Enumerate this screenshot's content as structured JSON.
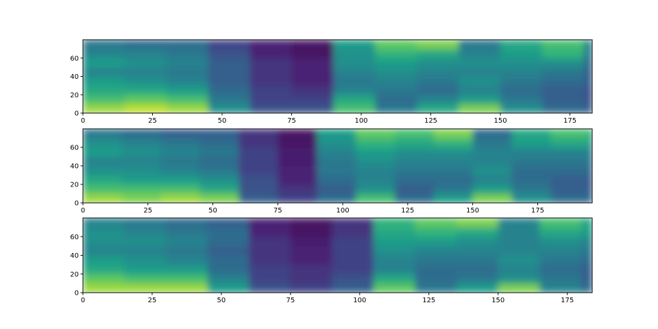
{
  "chart_data": [
    {
      "type": "heatmap",
      "colormap": "viridis",
      "xlim": [
        0,
        183
      ],
      "ylim": [
        0,
        80
      ],
      "xticks": [
        0,
        25,
        50,
        75,
        100,
        125,
        150,
        175
      ],
      "yticks": [
        0,
        20,
        40,
        60
      ],
      "xbins": [
        0,
        15,
        30,
        45,
        60,
        75,
        90,
        105,
        120,
        135,
        150,
        165,
        180,
        183
      ],
      "ybins": [
        0,
        10,
        20,
        30,
        40,
        50,
        60,
        70,
        80
      ],
      "z": [
        [
          0.85,
          0.7,
          0.6,
          0.55,
          0.45,
          0.55,
          0.45,
          0.4
        ],
        [
          0.9,
          0.75,
          0.6,
          0.5,
          0.45,
          0.5,
          0.45,
          0.35
        ],
        [
          0.85,
          0.7,
          0.55,
          0.45,
          0.4,
          0.45,
          0.4,
          0.35
        ],
        [
          0.5,
          0.4,
          0.35,
          0.3,
          0.3,
          0.3,
          0.25,
          0.2
        ],
        [
          0.25,
          0.2,
          0.2,
          0.15,
          0.15,
          0.15,
          0.1,
          0.1
        ],
        [
          0.25,
          0.2,
          0.15,
          0.1,
          0.1,
          0.1,
          0.05,
          0.05
        ],
        [
          0.7,
          0.6,
          0.45,
          0.4,
          0.45,
          0.5,
          0.5,
          0.55
        ],
        [
          0.4,
          0.35,
          0.4,
          0.45,
          0.5,
          0.55,
          0.65,
          0.75
        ],
        [
          0.6,
          0.45,
          0.35,
          0.4,
          0.45,
          0.5,
          0.6,
          0.8
        ],
        [
          0.8,
          0.55,
          0.45,
          0.5,
          0.45,
          0.5,
          0.45,
          0.4
        ],
        [
          0.5,
          0.4,
          0.35,
          0.4,
          0.45,
          0.5,
          0.55,
          0.6
        ],
        [
          0.35,
          0.3,
          0.3,
          0.35,
          0.4,
          0.5,
          0.65,
          0.7
        ],
        [
          0.3,
          0.25,
          0.25,
          0.3,
          0.3,
          0.35,
          0.4,
          0.45
        ]
      ]
    },
    {
      "type": "heatmap",
      "colormap": "viridis",
      "xlim": [
        0,
        196
      ],
      "ylim": [
        0,
        80
      ],
      "xticks": [
        0,
        25,
        50,
        75,
        100,
        125,
        150,
        175
      ],
      "yticks": [
        0,
        20,
        40,
        60
      ],
      "xbins": [
        0,
        15,
        30,
        45,
        60,
        75,
        90,
        105,
        120,
        135,
        150,
        165,
        180,
        195,
        196
      ],
      "ybins": [
        0,
        10,
        20,
        30,
        40,
        50,
        60,
        70,
        80
      ],
      "z": [
        [
          0.85,
          0.7,
          0.6,
          0.5,
          0.45,
          0.55,
          0.5,
          0.4
        ],
        [
          0.8,
          0.7,
          0.55,
          0.5,
          0.45,
          0.5,
          0.45,
          0.35
        ],
        [
          0.85,
          0.7,
          0.55,
          0.45,
          0.4,
          0.45,
          0.4,
          0.3
        ],
        [
          0.8,
          0.6,
          0.5,
          0.4,
          0.35,
          0.4,
          0.35,
          0.3
        ],
        [
          0.3,
          0.25,
          0.25,
          0.2,
          0.2,
          0.2,
          0.15,
          0.15
        ],
        [
          0.2,
          0.15,
          0.1,
          0.1,
          0.08,
          0.08,
          0.05,
          0.05
        ],
        [
          0.35,
          0.3,
          0.35,
          0.4,
          0.4,
          0.45,
          0.5,
          0.55
        ],
        [
          0.7,
          0.5,
          0.45,
          0.45,
          0.5,
          0.55,
          0.65,
          0.75
        ],
        [
          0.35,
          0.3,
          0.35,
          0.4,
          0.45,
          0.5,
          0.6,
          0.7
        ],
        [
          0.55,
          0.4,
          0.35,
          0.4,
          0.45,
          0.5,
          0.65,
          0.8
        ],
        [
          0.8,
          0.55,
          0.45,
          0.5,
          0.45,
          0.45,
          0.4,
          0.35
        ],
        [
          0.5,
          0.4,
          0.35,
          0.35,
          0.4,
          0.45,
          0.55,
          0.6
        ],
        [
          0.35,
          0.3,
          0.3,
          0.35,
          0.4,
          0.45,
          0.6,
          0.7
        ],
        [
          0.3,
          0.25,
          0.25,
          0.3,
          0.35,
          0.4,
          0.5,
          0.55
        ]
      ]
    },
    {
      "type": "heatmap",
      "colormap": "viridis",
      "xlim": [
        0,
        184
      ],
      "ylim": [
        0,
        80
      ],
      "xticks": [
        0,
        25,
        50,
        75,
        100,
        125,
        150,
        175
      ],
      "yticks": [
        0,
        20,
        40,
        60
      ],
      "xbins": [
        0,
        15,
        30,
        45,
        60,
        75,
        90,
        105,
        120,
        135,
        150,
        165,
        180,
        184
      ],
      "ybins": [
        0,
        10,
        20,
        30,
        40,
        50,
        60,
        70,
        80
      ],
      "z": [
        [
          0.85,
          0.75,
          0.6,
          0.55,
          0.45,
          0.5,
          0.5,
          0.45
        ],
        [
          0.85,
          0.7,
          0.55,
          0.5,
          0.45,
          0.5,
          0.45,
          0.4
        ],
        [
          0.85,
          0.7,
          0.55,
          0.45,
          0.4,
          0.45,
          0.4,
          0.35
        ],
        [
          0.55,
          0.45,
          0.35,
          0.35,
          0.3,
          0.35,
          0.35,
          0.3
        ],
        [
          0.25,
          0.2,
          0.2,
          0.15,
          0.15,
          0.15,
          0.1,
          0.1
        ],
        [
          0.2,
          0.15,
          0.15,
          0.1,
          0.1,
          0.08,
          0.05,
          0.05
        ],
        [
          0.3,
          0.25,
          0.2,
          0.2,
          0.2,
          0.2,
          0.15,
          0.15
        ],
        [
          0.75,
          0.6,
          0.45,
          0.45,
          0.5,
          0.55,
          0.6,
          0.65
        ],
        [
          0.4,
          0.35,
          0.35,
          0.4,
          0.45,
          0.55,
          0.65,
          0.75
        ],
        [
          0.55,
          0.4,
          0.35,
          0.4,
          0.45,
          0.5,
          0.6,
          0.8
        ],
        [
          0.8,
          0.5,
          0.45,
          0.5,
          0.45,
          0.45,
          0.45,
          0.45
        ],
        [
          0.45,
          0.4,
          0.35,
          0.4,
          0.45,
          0.5,
          0.6,
          0.7
        ],
        [
          0.35,
          0.3,
          0.3,
          0.35,
          0.4,
          0.45,
          0.55,
          0.6
        ]
      ]
    }
  ]
}
